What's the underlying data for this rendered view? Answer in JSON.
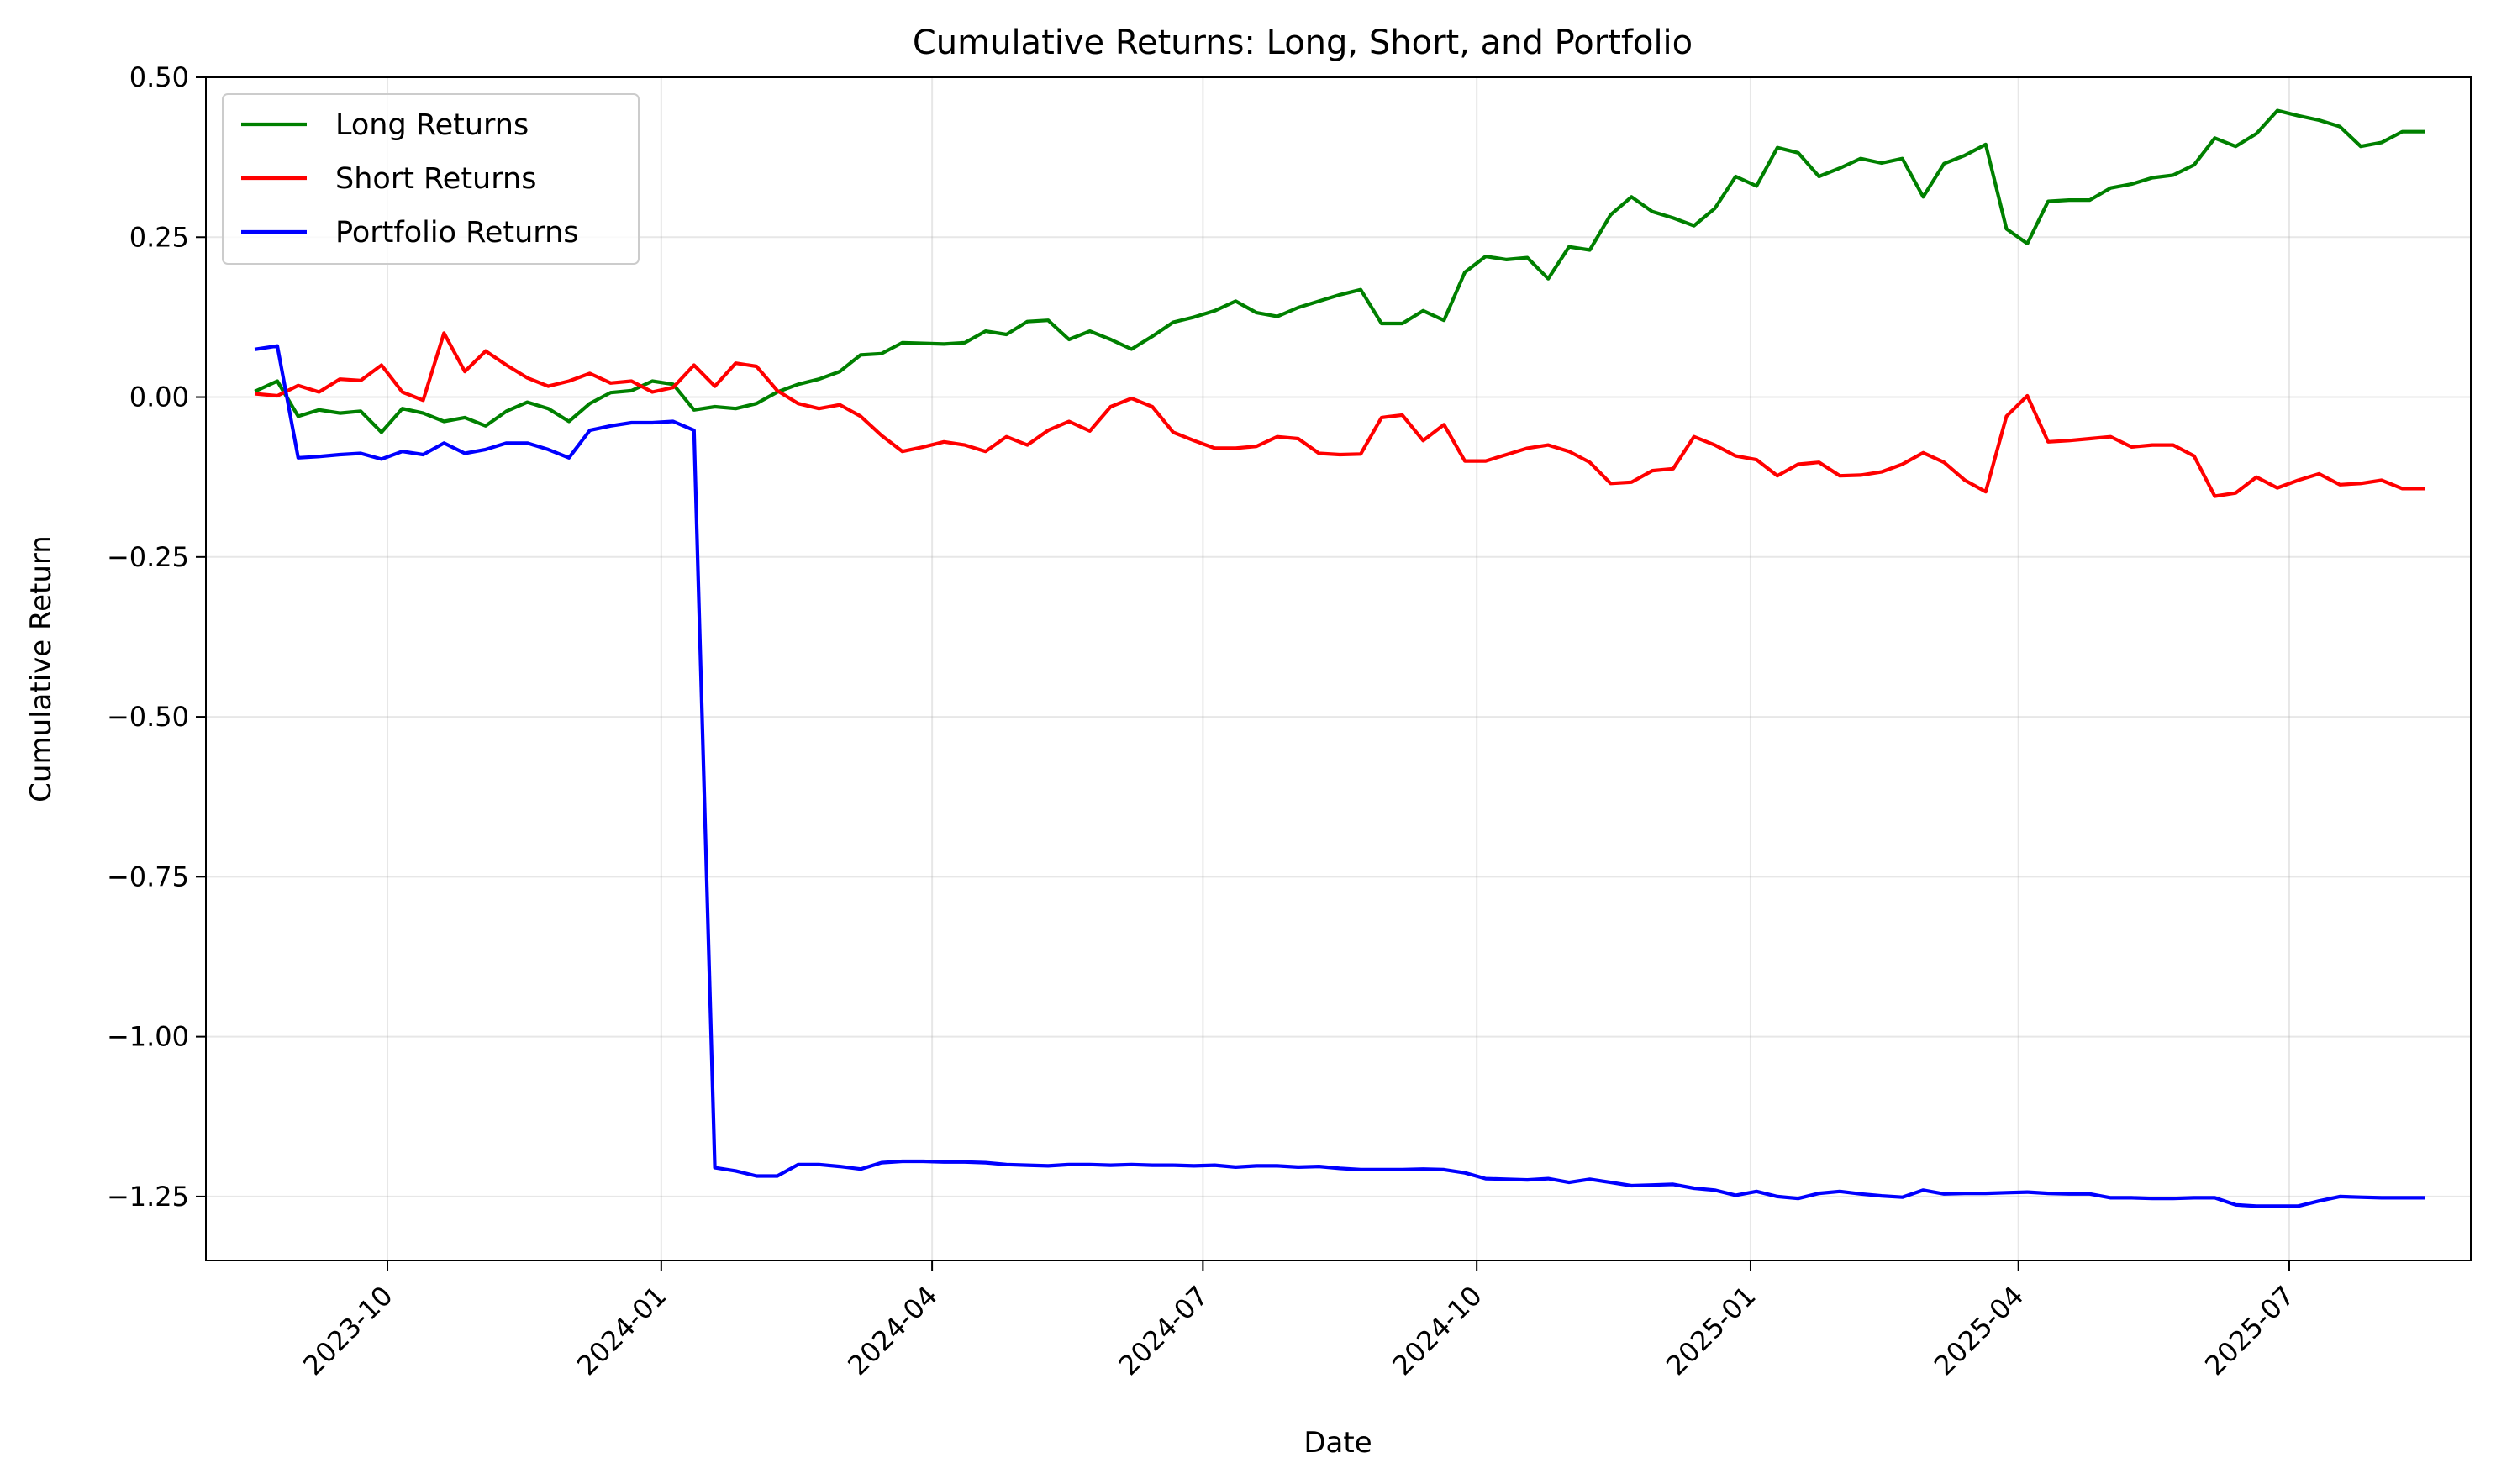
{
  "chart_data": {
    "type": "line",
    "title": "Cumulative Returns: Long, Short, and Portfolio",
    "xlabel": "Date",
    "ylabel": "Cumulative Return",
    "ylim": [
      -1.35,
      0.5
    ],
    "xlim": [
      "2023-08-01",
      "2025-08-31"
    ],
    "grid": true,
    "legend_position": "top-left",
    "xticks": [
      "2023-10",
      "2024-01",
      "2024-04",
      "2024-07",
      "2024-10",
      "2025-01",
      "2025-04",
      "2025-07"
    ],
    "yticks": [
      0.5,
      0.25,
      0.0,
      -0.25,
      -0.5,
      -0.75,
      -1.0,
      -1.25
    ],
    "ytick_labels": [
      "0.50",
      "0.25",
      "0.00",
      "−0.25",
      "−0.50",
      "−0.75",
      "−1.00",
      "−1.25"
    ],
    "x": [
      "2023-08-18",
      "2023-08-25",
      "2023-09-01",
      "2023-09-08",
      "2023-09-15",
      "2023-09-22",
      "2023-09-29",
      "2023-10-06",
      "2023-10-13",
      "2023-10-20",
      "2023-10-27",
      "2023-11-03",
      "2023-11-10",
      "2023-11-17",
      "2023-11-24",
      "2023-12-01",
      "2023-12-08",
      "2023-12-15",
      "2023-12-22",
      "2023-12-29",
      "2024-01-05",
      "2024-01-12",
      "2024-01-19",
      "2024-01-26",
      "2024-02-02",
      "2024-02-09",
      "2024-02-16",
      "2024-02-23",
      "2024-03-01",
      "2024-03-08",
      "2024-03-15",
      "2024-03-22",
      "2024-03-29",
      "2024-04-05",
      "2024-04-12",
      "2024-04-19",
      "2024-04-26",
      "2024-05-03",
      "2024-05-10",
      "2024-05-17",
      "2024-05-24",
      "2024-05-31",
      "2024-06-07",
      "2024-06-14",
      "2024-06-21",
      "2024-06-28",
      "2024-07-05",
      "2024-07-12",
      "2024-07-19",
      "2024-07-26",
      "2024-08-02",
      "2024-08-09",
      "2024-08-16",
      "2024-08-23",
      "2024-08-30",
      "2024-09-06",
      "2024-09-13",
      "2024-09-20",
      "2024-09-27",
      "2024-10-04",
      "2024-10-11",
      "2024-10-18",
      "2024-10-25",
      "2024-11-01",
      "2024-11-08",
      "2024-11-15",
      "2024-11-22",
      "2024-11-29",
      "2024-12-06",
      "2024-12-13",
      "2024-12-20",
      "2024-12-27",
      "2025-01-03",
      "2025-01-10",
      "2025-01-17",
      "2025-01-24",
      "2025-01-31",
      "2025-02-07",
      "2025-02-14",
      "2025-02-21",
      "2025-02-28",
      "2025-03-07",
      "2025-03-14",
      "2025-03-21",
      "2025-03-28",
      "2025-04-04",
      "2025-04-11",
      "2025-04-18",
      "2025-04-25",
      "2025-05-02",
      "2025-05-09",
      "2025-05-16",
      "2025-05-23",
      "2025-05-30",
      "2025-06-06",
      "2025-06-13",
      "2025-06-20",
      "2025-06-27",
      "2025-07-04",
      "2025-07-11",
      "2025-07-18",
      "2025-07-25",
      "2025-08-01",
      "2025-08-08",
      "2025-08-15"
    ],
    "series": [
      {
        "name": "Long Returns",
        "color": "#008000",
        "values": [
          0.01,
          0.025,
          -0.03,
          -0.02,
          -0.025,
          -0.022,
          -0.055,
          -0.018,
          -0.025,
          -0.038,
          -0.032,
          -0.045,
          -0.022,
          -0.008,
          -0.018,
          -0.038,
          -0.01,
          0.007,
          0.01,
          0.025,
          0.02,
          -0.02,
          -0.015,
          -0.018,
          -0.01,
          0.008,
          0.02,
          0.028,
          0.04,
          0.066,
          0.068,
          0.085,
          0.084,
          0.083,
          0.085,
          0.103,
          0.098,
          0.118,
          0.12,
          0.09,
          0.103,
          0.09,
          0.075,
          0.095,
          0.117,
          0.125,
          0.135,
          0.15,
          0.132,
          0.126,
          0.14,
          0.15,
          0.16,
          0.168,
          0.115,
          0.115,
          0.135,
          0.12,
          0.195,
          0.22,
          0.215,
          0.218,
          0.185,
          0.235,
          0.23,
          0.285,
          0.313,
          0.29,
          0.28,
          0.268,
          0.295,
          0.345,
          0.33,
          0.39,
          0.382,
          0.345,
          0.358,
          0.373,
          0.366,
          0.373,
          0.313,
          0.365,
          0.378,
          0.395,
          0.263,
          0.24,
          0.306,
          0.308,
          0.308,
          0.327,
          0.333,
          0.343,
          0.347,
          0.363,
          0.405,
          0.392,
          0.412,
          0.448,
          0.44,
          0.433,
          0.423,
          0.392,
          0.398,
          0.415,
          0.415
        ]
      },
      {
        "name": "Short Returns",
        "color": "#ff0000",
        "values": [
          0.005,
          0.002,
          0.018,
          0.008,
          0.028,
          0.026,
          0.05,
          0.008,
          -0.005,
          0.1,
          0.04,
          0.072,
          0.05,
          0.03,
          0.017,
          0.025,
          0.037,
          0.022,
          0.025,
          0.008,
          0.015,
          0.05,
          0.017,
          0.053,
          0.048,
          0.01,
          -0.01,
          -0.018,
          -0.012,
          -0.03,
          -0.06,
          -0.085,
          -0.078,
          -0.07,
          -0.075,
          -0.085,
          -0.062,
          -0.075,
          -0.052,
          -0.038,
          -0.053,
          -0.015,
          -0.002,
          -0.015,
          -0.055,
          -0.068,
          -0.08,
          -0.08,
          -0.077,
          -0.062,
          -0.065,
          -0.088,
          -0.09,
          -0.089,
          -0.032,
          -0.028,
          -0.068,
          -0.043,
          -0.1,
          -0.1,
          -0.09,
          -0.08,
          -0.075,
          -0.085,
          -0.102,
          -0.135,
          -0.133,
          -0.115,
          -0.112,
          -0.062,
          -0.075,
          -0.092,
          -0.098,
          -0.123,
          -0.105,
          -0.102,
          -0.123,
          -0.122,
          -0.117,
          -0.105,
          -0.087,
          -0.102,
          -0.13,
          -0.148,
          -0.03,
          0.002,
          -0.07,
          -0.068,
          -0.065,
          -0.062,
          -0.078,
          -0.075,
          -0.075,
          -0.092,
          -0.155,
          -0.15,
          -0.125,
          -0.142,
          -0.13,
          -0.12,
          -0.137,
          -0.135,
          -0.13,
          -0.143,
          -0.143
        ]
      },
      {
        "name": "Portfolio Returns",
        "color": "#0000ff",
        "values": [
          0.075,
          0.08,
          -0.095,
          -0.093,
          -0.09,
          -0.088,
          -0.097,
          -0.085,
          -0.09,
          -0.072,
          -0.088,
          -0.082,
          -0.072,
          -0.072,
          -0.082,
          -0.095,
          -0.052,
          -0.045,
          -0.04,
          -0.04,
          -0.038,
          -0.052,
          -1.205,
          -1.21,
          -1.218,
          -1.218,
          -1.2,
          -1.2,
          -1.203,
          -1.207,
          -1.197,
          -1.195,
          -1.195,
          -1.196,
          -1.196,
          -1.197,
          -1.2,
          -1.201,
          -1.202,
          -1.2,
          -1.2,
          -1.201,
          -1.2,
          -1.201,
          -1.201,
          -1.202,
          -1.201,
          -1.204,
          -1.202,
          -1.202,
          -1.204,
          -1.203,
          -1.206,
          -1.208,
          -1.208,
          -1.208,
          -1.207,
          -1.208,
          -1.213,
          -1.222,
          -1.223,
          -1.224,
          -1.222,
          -1.228,
          -1.223,
          -1.228,
          -1.233,
          -1.232,
          -1.231,
          -1.237,
          -1.24,
          -1.248,
          -1.242,
          -1.25,
          -1.253,
          -1.245,
          -1.242,
          -1.246,
          -1.249,
          -1.251,
          -1.24,
          -1.246,
          -1.245,
          -1.245,
          -1.244,
          -1.243,
          -1.245,
          -1.246,
          -1.246,
          -1.252,
          -1.252,
          -1.253,
          -1.253,
          -1.252,
          -1.252,
          -1.263,
          -1.265,
          -1.265,
          -1.265,
          -1.257,
          -1.25,
          -1.251,
          -1.252,
          -1.252,
          -1.252
        ]
      }
    ]
  }
}
